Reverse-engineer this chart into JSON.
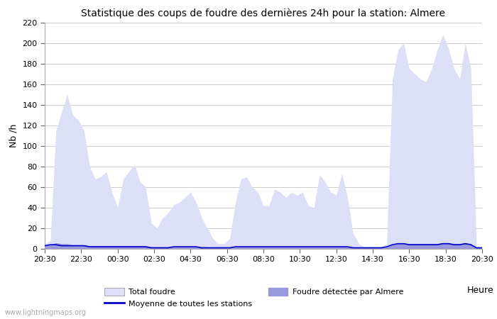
{
  "title": "Statistique des coups de foudre des dernières 24h pour la station: Almere",
  "xlabel": "Heure",
  "ylabel": "Nb /h",
  "watermark": "www.lightningmaps.org",
  "ylim": [
    0,
    220
  ],
  "yticks": [
    0,
    20,
    40,
    60,
    80,
    100,
    120,
    140,
    160,
    180,
    200,
    220
  ],
  "xtick_labels": [
    "20:30",
    "22:30",
    "00:30",
    "02:30",
    "04:30",
    "06:30",
    "08:30",
    "10:30",
    "12:30",
    "14:30",
    "16:30",
    "18:30",
    "20:30"
  ],
  "bg_color": "#ffffff",
  "grid_color": "#cccccc",
  "total_foudre_color": "#dcdff5",
  "almere_color": "#9999dd",
  "moyenne_color": "#0000cc",
  "total_foudre": [
    5,
    8,
    115,
    133,
    150,
    130,
    125,
    115,
    80,
    68,
    70,
    75,
    55,
    40,
    68,
    75,
    82,
    65,
    60,
    25,
    20,
    30,
    35,
    43,
    45,
    50,
    55,
    45,
    30,
    20,
    10,
    5,
    5,
    10,
    45,
    68,
    70,
    60,
    55,
    42,
    42,
    58,
    55,
    50,
    55,
    52,
    55,
    42,
    40,
    72,
    65,
    55,
    52,
    73,
    50,
    15,
    5,
    2,
    2,
    2,
    2,
    5,
    165,
    193,
    200,
    175,
    170,
    165,
    162,
    175,
    193,
    208,
    195,
    175,
    165,
    200,
    175,
    2,
    2
  ],
  "almere_detected": [
    3,
    4,
    6,
    5,
    5,
    4,
    4,
    4,
    3,
    3,
    3,
    3,
    3,
    3,
    3,
    3,
    3,
    3,
    3,
    2,
    2,
    2,
    2,
    2,
    2,
    2,
    2,
    2,
    2,
    2,
    1,
    1,
    1,
    1,
    2,
    2,
    2,
    2,
    2,
    2,
    2,
    2,
    2,
    2,
    2,
    2,
    2,
    2,
    2,
    2,
    2,
    2,
    2,
    2,
    2,
    1,
    1,
    1,
    1,
    1,
    1,
    2,
    4,
    5,
    6,
    5,
    5,
    5,
    5,
    5,
    5,
    6,
    6,
    5,
    5,
    6,
    5,
    1,
    1
  ],
  "moyenne": [
    3,
    4,
    4,
    3,
    3,
    3,
    3,
    3,
    2,
    2,
    2,
    2,
    2,
    2,
    2,
    2,
    2,
    2,
    2,
    1,
    1,
    1,
    1,
    2,
    2,
    2,
    2,
    2,
    1,
    1,
    1,
    1,
    1,
    1,
    2,
    2,
    2,
    2,
    2,
    2,
    2,
    2,
    2,
    2,
    2,
    2,
    2,
    2,
    2,
    2,
    2,
    2,
    2,
    2,
    2,
    1,
    1,
    1,
    1,
    1,
    1,
    2,
    4,
    5,
    5,
    4,
    4,
    4,
    4,
    4,
    4,
    5,
    5,
    4,
    4,
    5,
    4,
    1,
    1
  ],
  "n_points": 79
}
